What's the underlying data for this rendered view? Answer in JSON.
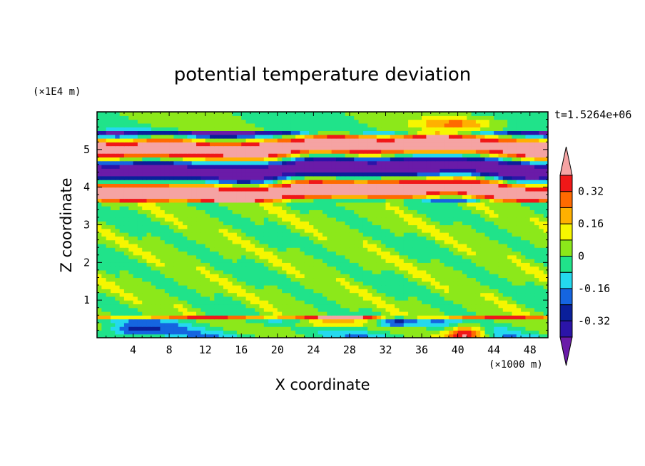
{
  "chart_data": {
    "type": "heatmap",
    "title": "potential temperature deviation",
    "xlabel": "X coordinate",
    "ylabel": "Z coordinate",
    "x_unit": "(×1000 m)",
    "y_unit": "(×1E4 m)",
    "time_label": "t=1.5264e+06",
    "xlim": [
      0,
      50
    ],
    "ylim": [
      0,
      6
    ],
    "x_ticks": [
      "4",
      "8",
      "12",
      "16",
      "20",
      "24",
      "28",
      "32",
      "36",
      "40",
      "44",
      "48"
    ],
    "y_ticks": [
      "1",
      "2",
      "3",
      "4",
      "5"
    ],
    "colorbar": {
      "labels": [
        "0.32",
        "0.16",
        "0",
        "-0.16",
        "-0.32"
      ],
      "levels": [
        -0.4,
        -0.32,
        -0.24,
        -0.16,
        -0.08,
        0,
        0.08,
        0.16,
        0.24,
        0.32,
        0.4
      ],
      "colors": [
        "#6a1ba8",
        "#2b14a8",
        "#0a1f9a",
        "#1565e0",
        "#24d9ee",
        "#20e38a",
        "#8ce81a",
        "#f6f600",
        "#ffb000",
        "#ff6a00",
        "#f01818",
        "#f5a3a3"
      ]
    },
    "bands": [
      {
        "z": [
          0,
          0.6
        ],
        "description": "near-surface layer, mixed positive and negative deviations, warm maximum near x=40"
      },
      {
        "z": [
          0.6,
          3.6
        ],
        "description": "weak deviations, values between -0.08 and 0.08"
      },
      {
        "z": [
          3.6,
          5.4
        ],
        "description": "strong alternating layers of large positive (>0.4) and negative (<-0.4) deviations"
      },
      {
        "z": [
          5.4,
          6.0
        ],
        "description": "weak deviations with small warm patch near x=40"
      }
    ]
  }
}
